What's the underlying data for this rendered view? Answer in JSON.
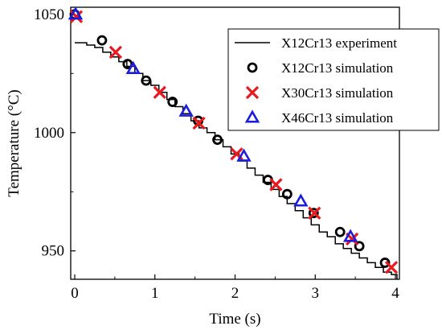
{
  "chart_data": {
    "type": "line",
    "title": "",
    "xlabel": "Time (s)",
    "ylabel": "Temperature (°C)",
    "xlim": [
      -0.05,
      4.05
    ],
    "ylim": [
      938,
      1053
    ],
    "xticks": [
      0,
      1,
      2,
      3,
      4
    ],
    "yticks": [
      950,
      1000,
      1050
    ],
    "xtick_labels": [
      "0",
      "1",
      "2",
      "3",
      "4"
    ],
    "ytick_labels": [
      "950",
      "1000",
      "1050"
    ],
    "legend_position": "top-right",
    "grid": false,
    "series": [
      {
        "name": "X12Cr13 experiment",
        "kind": "line",
        "color": "#000000",
        "x": [
          0,
          0.15,
          0.25,
          0.35,
          0.45,
          0.55,
          0.65,
          0.75,
          0.85,
          0.95,
          1.05,
          1.15,
          1.25,
          1.35,
          1.45,
          1.55,
          1.65,
          1.75,
          1.85,
          1.95,
          2.05,
          2.15,
          2.25,
          2.35,
          2.45,
          2.55,
          2.65,
          2.75,
          2.85,
          2.95,
          3.05,
          3.15,
          3.25,
          3.35,
          3.45,
          3.55,
          3.65,
          3.75,
          3.85,
          3.95,
          4.02
        ],
        "y": [
          1038,
          1037,
          1036,
          1034,
          1032,
          1030,
          1028,
          1025,
          1022,
          1020,
          1017,
          1014,
          1011,
          1008,
          1005,
          1002,
          1000,
          997,
          994,
          991,
          988,
          985,
          982,
          979,
          976,
          973,
          970,
          967,
          964,
          961,
          958,
          956,
          953,
          951,
          949,
          947,
          945,
          943,
          941,
          940,
          938
        ]
      },
      {
        "name": "X12Cr13 simulation",
        "kind": "circle",
        "color": "#000000",
        "x": [
          0.0,
          0.34,
          0.66,
          0.89,
          1.22,
          1.54,
          1.78,
          2.41,
          2.65,
          2.98,
          3.31,
          3.55,
          3.87
        ],
        "y": [
          1050,
          1039,
          1029,
          1022,
          1013,
          1005,
          997,
          980,
          974,
          966,
          958,
          952,
          945
        ]
      },
      {
        "name": "X30Cr13 simulation",
        "kind": "cross",
        "color": "#e8191f",
        "x": [
          0.02,
          0.51,
          1.06,
          1.55,
          2.02,
          2.51,
          2.99,
          3.46,
          3.95
        ],
        "y": [
          1049,
          1034,
          1017,
          1004,
          991,
          978,
          966,
          955,
          943
        ]
      },
      {
        "name": "X46Cr13 simulation",
        "kind": "triangle",
        "color": "#1c1cdc",
        "x": [
          0.01,
          0.73,
          1.39,
          2.11,
          2.82,
          3.44
        ],
        "y": [
          1050,
          1027,
          1009,
          990,
          971,
          956
        ]
      }
    ]
  }
}
